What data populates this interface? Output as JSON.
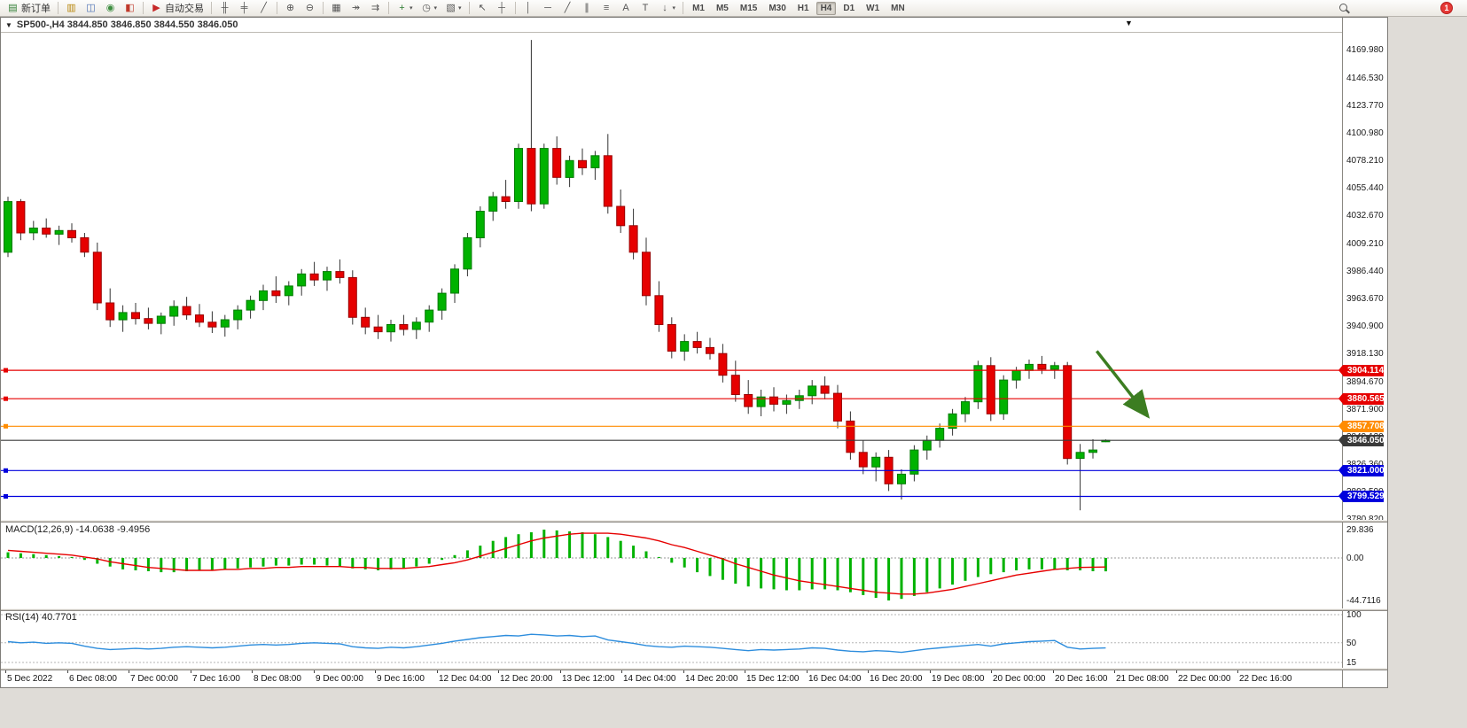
{
  "window": {
    "chart_title": "SP500-,H4 3844.850 3846.850 3844.550 3846.050",
    "collapse_icon": "▼",
    "menu_chevron": "▼"
  },
  "toolbar": {
    "badge_count": "1",
    "active_timeframe": "H4",
    "timeframes": [
      "M1",
      "M5",
      "M15",
      "M30",
      "H1",
      "H4",
      "D1",
      "W1",
      "MN"
    ],
    "items": [
      {
        "type": "button",
        "name": "new-order-button",
        "icon": "new-order-icon",
        "glyph": "▤",
        "color": "#2e7d32",
        "label": "新订单"
      },
      {
        "type": "sep"
      },
      {
        "type": "button",
        "name": "charts-window-button",
        "icon": "chart-window-icon",
        "glyph": "▥",
        "color": "#b8860b"
      },
      {
        "type": "button",
        "name": "profiles-button",
        "icon": "profiles-icon",
        "glyph": "◫",
        "color": "#4a6fb5"
      },
      {
        "type": "button",
        "name": "alerts-button",
        "icon": "alerts-icon",
        "glyph": "◉",
        "color": "#3e8e41"
      },
      {
        "type": "button",
        "name": "metaeditor-button",
        "icon": "metaeditor-icon",
        "glyph": "◧",
        "color": "#c0392b"
      },
      {
        "type": "sep"
      },
      {
        "type": "button",
        "name": "autotrading-button",
        "icon": "autotrading-play-icon",
        "glyph": "▶",
        "color": "#c62828",
        "label": "自动交易"
      },
      {
        "type": "sep"
      },
      {
        "type": "button",
        "name": "chart-bars-button",
        "icon": "bars-chart-icon",
        "glyph": "╫"
      },
      {
        "type": "button",
        "name": "chart-candles-button",
        "icon": "candlestick-chart-icon",
        "glyph": "╪"
      },
      {
        "type": "button",
        "name": "chart-line-button",
        "icon": "line-chart-icon",
        "glyph": "╱"
      },
      {
        "type": "sep"
      },
      {
        "type": "button",
        "name": "zoom-in-button",
        "icon": "zoom-in-icon",
        "glyph": "⊕"
      },
      {
        "type": "button",
        "name": "zoom-out-button",
        "icon": "zoom-out-icon",
        "glyph": "⊖"
      },
      {
        "type": "sep"
      },
      {
        "type": "button",
        "name": "tile-windows-button",
        "icon": "tile-windows-icon",
        "glyph": "▦"
      },
      {
        "type": "button",
        "name": "auto-scroll-button",
        "icon": "auto-scroll-icon",
        "glyph": "↠"
      },
      {
        "type": "button",
        "name": "chart-shift-button",
        "icon": "chart-shift-icon",
        "glyph": "⇉"
      },
      {
        "type": "sep"
      },
      {
        "type": "button",
        "name": "indicators-button",
        "icon": "indicators-add-icon",
        "glyph": "+",
        "color": "#2e7d32",
        "dropdown": true
      },
      {
        "type": "button",
        "name": "periods-button",
        "icon": "periods-clock-icon",
        "glyph": "◷",
        "dropdown": true
      },
      {
        "type": "button",
        "name": "templates-button",
        "icon": "templates-icon",
        "glyph": "▧",
        "dropdown": true
      },
      {
        "type": "sep"
      },
      {
        "type": "button",
        "name": "cursor-button",
        "icon": "cursor-icon",
        "glyph": "↖"
      },
      {
        "type": "button",
        "name": "crosshair-button",
        "icon": "crosshair-icon",
        "glyph": "┼"
      },
      {
        "type": "sep"
      },
      {
        "type": "button",
        "name": "vertical-line-button",
        "icon": "vertical-line-icon",
        "glyph": "│"
      },
      {
        "type": "button",
        "name": "horizontal-line-button",
        "icon": "horizontal-line-icon",
        "glyph": "─"
      },
      {
        "type": "button",
        "name": "trendline-button",
        "icon": "trendline-icon",
        "glyph": "╱"
      },
      {
        "type": "button",
        "name": "channel-button",
        "icon": "equidistant-channel-icon",
        "glyph": "∥"
      },
      {
        "type": "button",
        "name": "fibonacci-button",
        "icon": "fibonacci-icon",
        "glyph": "≡"
      },
      {
        "type": "button",
        "name": "text-button",
        "icon": "text-icon",
        "glyph": "A"
      },
      {
        "type": "button",
        "name": "text-label-button",
        "icon": "text-label-icon",
        "glyph": "T"
      },
      {
        "type": "button",
        "name": "arrows-button",
        "icon": "arrows-icon",
        "glyph": "↓",
        "dropdown": true
      },
      {
        "type": "sep"
      }
    ]
  },
  "chart_data": {
    "type": "candlestick",
    "symbol": "SP500-",
    "timeframe": "H4",
    "ohlc_current": {
      "open": 3844.85,
      "high": 3846.85,
      "low": 3844.55,
      "close": 3846.05
    },
    "price_scale": {
      "max": 4169.98,
      "min": 3780.82
    },
    "colors": {
      "up": "#00b200",
      "down": "#e60000",
      "up_border": "#007a00",
      "down_border": "#990000",
      "wick": "#333333",
      "macd_histogram": "#00b200",
      "macd_signal": "#e60000",
      "rsi_line": "#2d8ddd",
      "background": "#ffffff"
    },
    "price_axis_labels": [
      "4169.980",
      "4146.530",
      "4123.770",
      "4100.980",
      "4078.210",
      "4055.440",
      "4032.670",
      "4009.210",
      "3986.440",
      "3963.670",
      "3940.900",
      "3918.130",
      "3894.670",
      "3871.900",
      "3849.130",
      "3826.360",
      "3803.590",
      "3780.820"
    ],
    "x_labels": [
      "5 Dec 2022",
      "6 Dec 08:00",
      "7 Dec 00:00",
      "7 Dec 16:00",
      "8 Dec 08:00",
      "9 Dec 00:00",
      "9 Dec 16:00",
      "12 Dec 04:00",
      "12 Dec 20:00",
      "13 Dec 12:00",
      "14 Dec 04:00",
      "14 Dec 20:00",
      "15 Dec 12:00",
      "16 Dec 04:00",
      "16 Dec 20:00",
      "19 Dec 08:00",
      "20 Dec 00:00",
      "20 Dec 16:00",
      "21 Dec 08:00",
      "22 Dec 00:00",
      "22 Dec 16:00"
    ],
    "hlines": [
      {
        "name": "resistance-line-1",
        "price": 3904.114,
        "label": "3904.114",
        "color": "#e60000",
        "marker": true
      },
      {
        "name": "resistance-line-2",
        "price": 3880.565,
        "label": "3880.565",
        "color": "#e60000",
        "marker": true
      },
      {
        "name": "pivot-line",
        "price": 3857.708,
        "label": "3857.708",
        "color": "#ff8c00",
        "marker": true
      },
      {
        "name": "current-price-line",
        "price": 3846.05,
        "label": "3846.050",
        "color": "#3a3a3a",
        "marker": false
      },
      {
        "name": "support-line-1",
        "price": 3821.0,
        "label": "3821.000",
        "color": "#0000dd",
        "marker": true
      },
      {
        "name": "support-line-2",
        "price": 3799.529,
        "label": "3799.529",
        "color": "#0000dd",
        "marker": true
      }
    ],
    "arrow": {
      "from_index": 85.3,
      "from_price": 3920,
      "to_index": 89.3,
      "to_price": 3866,
      "color": "#3c7d21"
    },
    "candles": [
      [
        4002,
        4048,
        3998,
        4044
      ],
      [
        4044,
        4046,
        4012,
        4018
      ],
      [
        4018,
        4028,
        4012,
        4022
      ],
      [
        4022,
        4030,
        4014,
        4017
      ],
      [
        4017,
        4024,
        4008,
        4020
      ],
      [
        4020,
        4026,
        4010,
        4014
      ],
      [
        4014,
        4018,
        3998,
        4002
      ],
      [
        4002,
        4010,
        3954,
        3960
      ],
      [
        3960,
        3972,
        3940,
        3946
      ],
      [
        3946,
        3958,
        3936,
        3952
      ],
      [
        3952,
        3960,
        3942,
        3947
      ],
      [
        3947,
        3956,
        3938,
        3943
      ],
      [
        3943,
        3952,
        3934,
        3949
      ],
      [
        3949,
        3962,
        3941,
        3957
      ],
      [
        3957,
        3965,
        3946,
        3950
      ],
      [
        3950,
        3959,
        3940,
        3944
      ],
      [
        3944,
        3953,
        3935,
        3940
      ],
      [
        3940,
        3950,
        3932,
        3946
      ],
      [
        3946,
        3958,
        3938,
        3954
      ],
      [
        3954,
        3966,
        3947,
        3962
      ],
      [
        3962,
        3975,
        3954,
        3970
      ],
      [
        3970,
        3982,
        3960,
        3966
      ],
      [
        3966,
        3978,
        3958,
        3974
      ],
      [
        3974,
        3988,
        3966,
        3984
      ],
      [
        3984,
        3994,
        3974,
        3979
      ],
      [
        3979,
        3990,
        3970,
        3986
      ],
      [
        3986,
        3996,
        3976,
        3981
      ],
      [
        3981,
        3987,
        3942,
        3948
      ],
      [
        3948,
        3956,
        3934,
        3940
      ],
      [
        3940,
        3950,
        3930,
        3936
      ],
      [
        3936,
        3946,
        3928,
        3942
      ],
      [
        3942,
        3950,
        3933,
        3938
      ],
      [
        3938,
        3948,
        3930,
        3944
      ],
      [
        3944,
        3958,
        3936,
        3954
      ],
      [
        3954,
        3972,
        3946,
        3968
      ],
      [
        3968,
        3992,
        3960,
        3988
      ],
      [
        3988,
        4018,
        3982,
        4014
      ],
      [
        4014,
        4040,
        4006,
        4036
      ],
      [
        4036,
        4052,
        4028,
        4048
      ],
      [
        4048,
        4062,
        4038,
        4044
      ],
      [
        4044,
        4092,
        4038,
        4088
      ],
      [
        4088,
        4178,
        4036,
        4042
      ],
      [
        4042,
        4092,
        4038,
        4088
      ],
      [
        4088,
        4098,
        4058,
        4064
      ],
      [
        4064,
        4082,
        4056,
        4078
      ],
      [
        4078,
        4088,
        4066,
        4072
      ],
      [
        4072,
        4086,
        4062,
        4082
      ],
      [
        4082,
        4100,
        4034,
        4040
      ],
      [
        4040,
        4054,
        4018,
        4024
      ],
      [
        4024,
        4038,
        3996,
        4002
      ],
      [
        4002,
        4014,
        3958,
        3966
      ],
      [
        3966,
        3978,
        3936,
        3942
      ],
      [
        3942,
        3948,
        3914,
        3920
      ],
      [
        3920,
        3934,
        3912,
        3928
      ],
      [
        3928,
        3936,
        3918,
        3923
      ],
      [
        3923,
        3931,
        3913,
        3918
      ],
      [
        3918,
        3926,
        3894,
        3900
      ],
      [
        3900,
        3912,
        3878,
        3884
      ],
      [
        3884,
        3896,
        3868,
        3874
      ],
      [
        3874,
        3888,
        3866,
        3882
      ],
      [
        3882,
        3890,
        3870,
        3876
      ],
      [
        3876,
        3884,
        3868,
        3879
      ],
      [
        3879,
        3888,
        3872,
        3883
      ],
      [
        3883,
        3896,
        3876,
        3891
      ],
      [
        3891,
        3899,
        3880,
        3885
      ],
      [
        3885,
        3892,
        3856,
        3862
      ],
      [
        3862,
        3870,
        3830,
        3836
      ],
      [
        3836,
        3846,
        3818,
        3824
      ],
      [
        3824,
        3836,
        3812,
        3832
      ],
      [
        3832,
        3838,
        3804,
        3810
      ],
      [
        3810,
        3822,
        3797,
        3818
      ],
      [
        3818,
        3842,
        3812,
        3838
      ],
      [
        3838,
        3850,
        3830,
        3846
      ],
      [
        3846,
        3860,
        3840,
        3856
      ],
      [
        3856,
        3872,
        3850,
        3868
      ],
      [
        3868,
        3882,
        3861,
        3878
      ],
      [
        3878,
        3912,
        3872,
        3908
      ],
      [
        3908,
        3915,
        3862,
        3868
      ],
      [
        3868,
        3900,
        3863,
        3896
      ],
      [
        3896,
        3907,
        3889,
        3904
      ],
      [
        3904,
        3913,
        3897,
        3909
      ],
      [
        3909,
        3916,
        3901,
        3905
      ],
      [
        3905,
        3911,
        3897,
        3908
      ],
      [
        3908,
        3911,
        3826,
        3831
      ],
      [
        3831,
        3843,
        3788,
        3836
      ],
      [
        3836,
        3847,
        3831,
        3838
      ],
      [
        3844.85,
        3846.85,
        3844.55,
        3846.05
      ]
    ],
    "macd": {
      "label": "MACD(12,26,9) -14.0638 -9.4956",
      "main_value": -14.0638,
      "signal_value": -9.4956,
      "scale_max": 29.836,
      "scale_min": -44.7116,
      "axis": [
        {
          "label": "29.836",
          "value": 29.836
        },
        {
          "label": "0.00",
          "value": 0
        },
        {
          "label": "-44.7116",
          "value": -44.7116
        }
      ],
      "histogram": [
        6,
        5,
        4,
        3,
        2,
        1,
        -2,
        -6,
        -9,
        -12,
        -13,
        -14,
        -15,
        -15,
        -14,
        -13,
        -13,
        -12,
        -11,
        -10,
        -9,
        -8,
        -8,
        -7,
        -7,
        -8,
        -9,
        -11,
        -12,
        -13,
        -12,
        -11,
        -9,
        -6,
        -2,
        3,
        8,
        13,
        18,
        22,
        25,
        27,
        29.8,
        29,
        28,
        27,
        25,
        22,
        18,
        13,
        7,
        1,
        -5,
        -10,
        -15,
        -19,
        -23,
        -27,
        -30,
        -32,
        -33,
        -34,
        -34,
        -33,
        -33,
        -34,
        -36,
        -39,
        -42,
        -44.7,
        -43,
        -40,
        -36,
        -32,
        -28,
        -24,
        -20,
        -17,
        -15,
        -13,
        -12,
        -12,
        -12,
        -13,
        -13,
        -14,
        -14.06
      ],
      "signal": [
        8,
        7,
        6,
        5,
        4,
        3,
        1,
        -1,
        -4,
        -6,
        -8,
        -10,
        -11,
        -12,
        -13,
        -13,
        -13,
        -12,
        -12,
        -11,
        -11,
        -10,
        -10,
        -9,
        -9,
        -9,
        -9,
        -10,
        -10,
        -11,
        -11,
        -11,
        -10,
        -9,
        -7,
        -5,
        -2,
        2,
        6,
        10,
        14,
        18,
        21,
        23,
        25,
        26,
        26,
        26,
        25,
        23,
        21,
        18,
        14,
        11,
        7,
        3,
        -1,
        -6,
        -10,
        -14,
        -18,
        -21,
        -24,
        -26,
        -28,
        -30,
        -32,
        -34,
        -36,
        -37,
        -38,
        -38,
        -37,
        -35,
        -33,
        -30,
        -27,
        -24,
        -21,
        -18,
        -16,
        -14,
        -12,
        -11,
        -10,
        -9.7,
        -9.5
      ]
    },
    "rsi": {
      "label": "RSI(14) 40.7701",
      "value": 40.7701,
      "levels": [
        {
          "label": "100",
          "value": 100
        },
        {
          "label": "50",
          "value": 50
        },
        {
          "label": "15",
          "value": 15
        }
      ],
      "values": [
        52,
        50,
        51,
        49,
        50,
        49,
        44,
        40,
        38,
        39,
        40,
        39,
        40,
        42,
        43,
        42,
        41,
        42,
        44,
        46,
        47,
        46,
        47,
        49,
        50,
        49,
        48,
        43,
        41,
        40,
        42,
        41,
        43,
        46,
        49,
        53,
        56,
        59,
        61,
        63,
        62,
        65,
        64,
        62,
        63,
        61,
        62,
        55,
        52,
        49,
        45,
        43,
        42,
        44,
        43,
        42,
        40,
        38,
        36,
        38,
        37,
        38,
        39,
        41,
        40,
        37,
        35,
        34,
        36,
        35,
        33,
        36,
        39,
        41,
        43,
        45,
        47,
        44,
        48,
        50,
        52,
        53,
        54,
        42,
        39,
        40,
        40.77
      ]
    }
  }
}
